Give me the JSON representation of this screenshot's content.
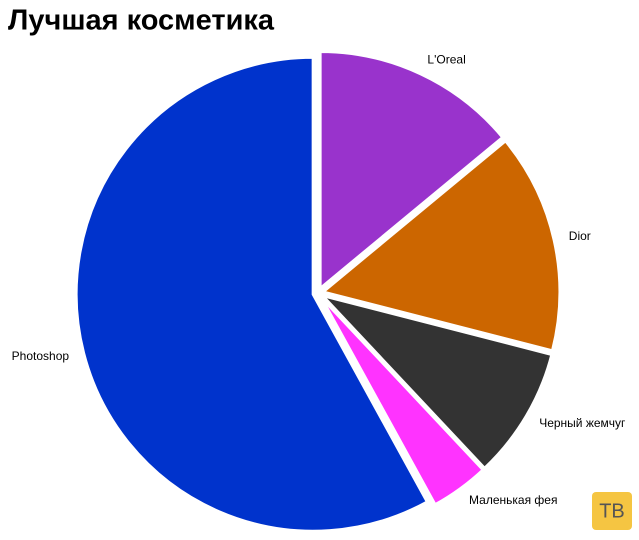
{
  "chart_data": {
    "type": "pie",
    "title": "Лучшая косметика",
    "categories": [
      "L'Oreal",
      "Dior",
      "Черный жемчуг",
      "Маленькая фея",
      "Photoshop"
    ],
    "values": [
      14,
      15,
      9,
      4,
      58
    ],
    "colors": [
      "#9933cc",
      "#cc6600",
      "#333333",
      "#ff33ff",
      "#0033cc"
    ]
  },
  "watermark": "ТВ"
}
